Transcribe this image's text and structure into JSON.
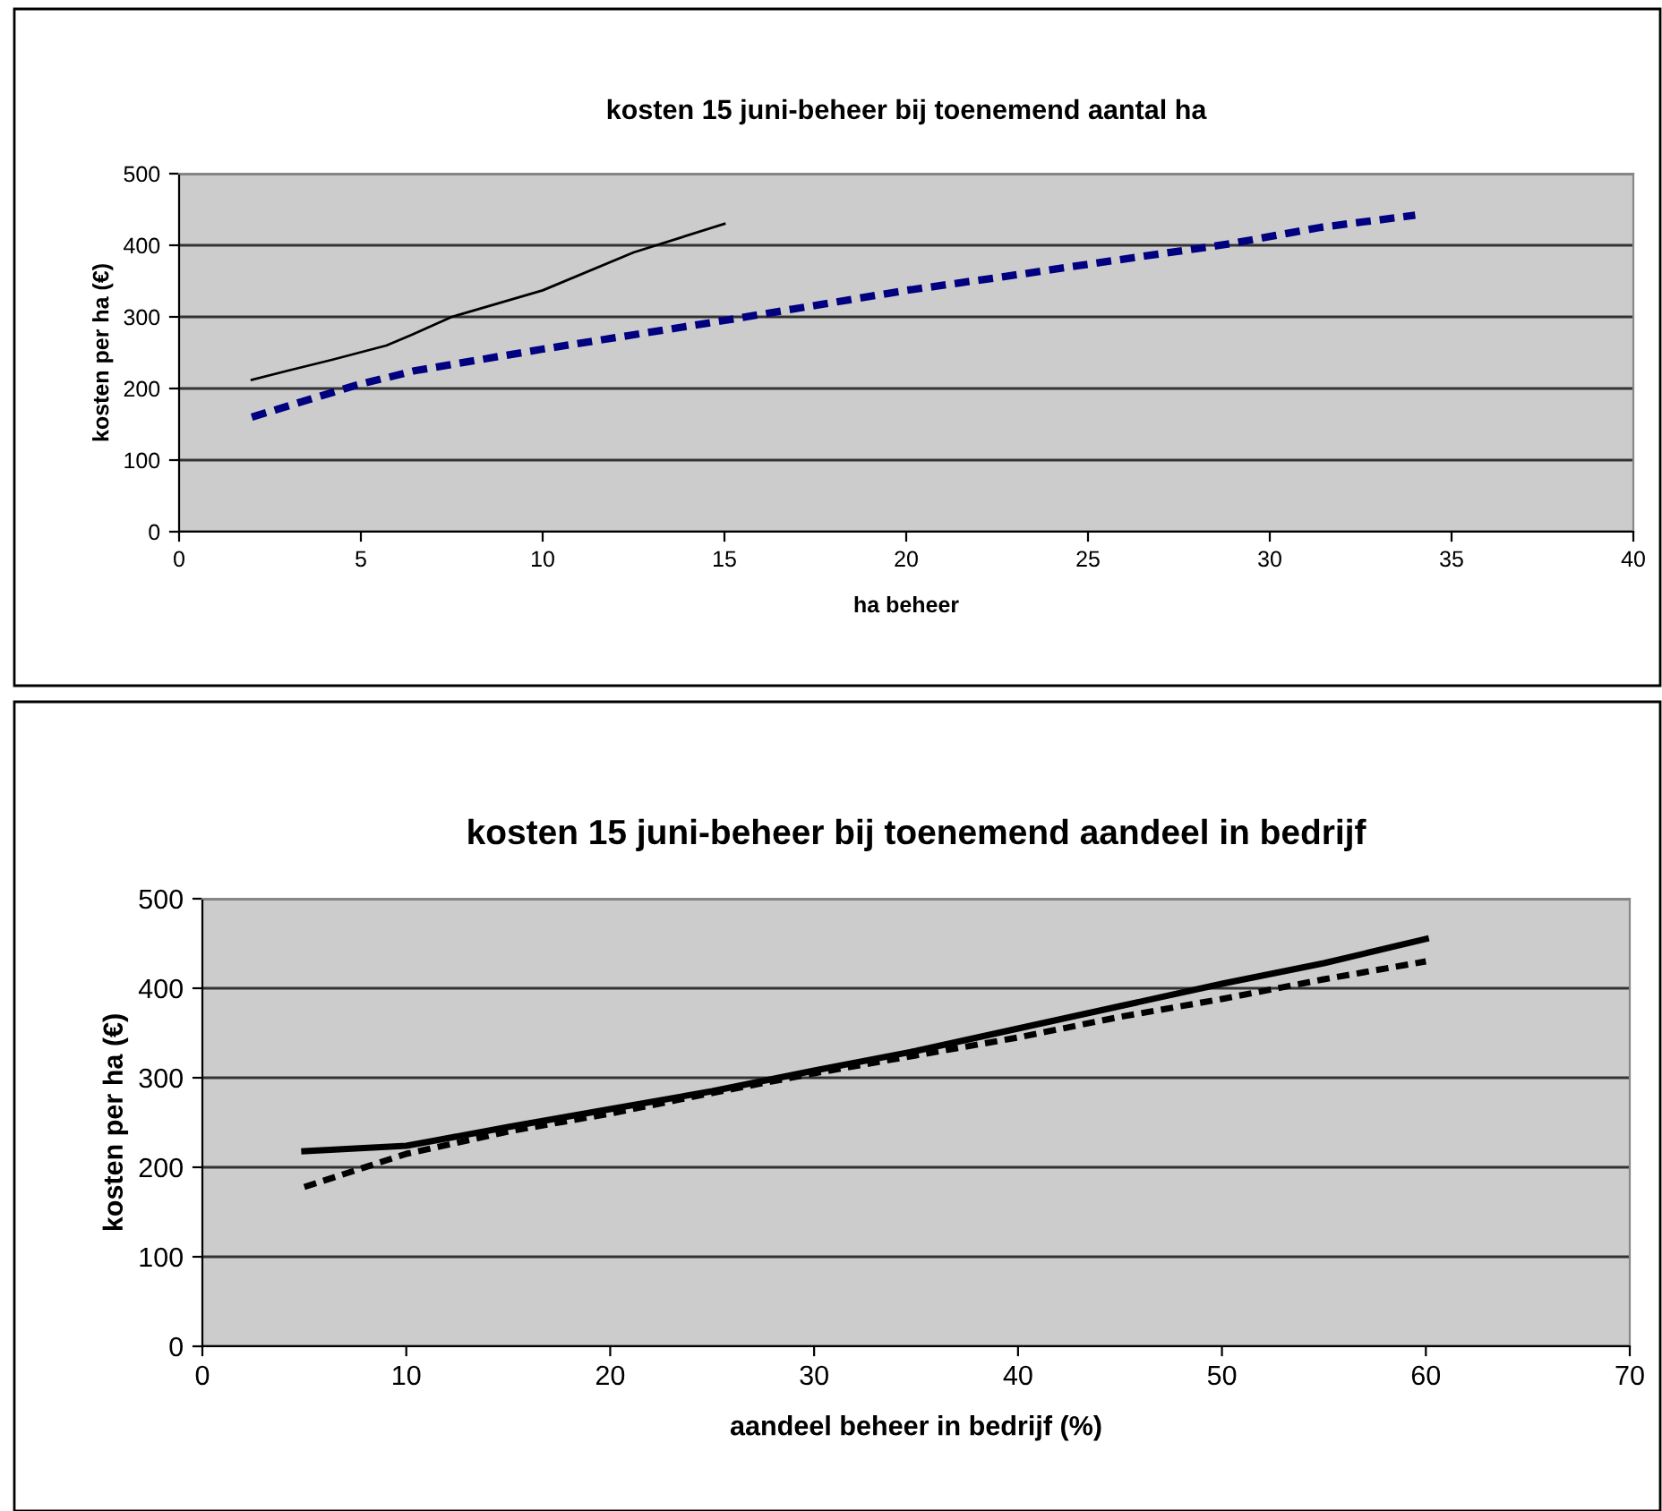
{
  "chart_data": [
    {
      "type": "line",
      "title": "kosten 15 juni-beheer bij toenemend aantal ha",
      "xlabel": "ha beheer",
      "ylabel": "kosten per ha (€)",
      "xlim": [
        0,
        40
      ],
      "xticks": [
        0,
        5,
        10,
        15,
        20,
        25,
        30,
        35,
        40
      ],
      "ylim": [
        0,
        500
      ],
      "yticks": [
        0,
        100,
        200,
        300,
        400,
        500
      ],
      "grid": "y",
      "series": [
        {
          "color": "#000000",
          "line_style": "solid",
          "x": [
            2,
            3,
            4.2,
            5.7,
            6.4,
            7.5,
            10,
            12.5,
            15
          ],
          "values": [
            212,
            225,
            240,
            260,
            275,
            300,
            337,
            390,
            430
          ]
        },
        {
          "color": "#000080",
          "line_style": "dashed",
          "x": [
            2,
            3.6,
            4.9,
            6.5,
            10,
            15,
            20,
            22.8,
            25.2,
            28.9,
            31.4,
            34
          ],
          "values": [
            160,
            185,
            205,
            225,
            255,
            295,
            337,
            357,
            375,
            402,
            425,
            442
          ]
        }
      ]
    },
    {
      "type": "line",
      "title": "kosten 15 juni-beheer bij toenemend aandeel in bedrijf",
      "xlabel": "aandeel beheer in bedrijf (%)",
      "ylabel": "kosten per ha (€)",
      "xlim": [
        0,
        70
      ],
      "xticks": [
        0,
        10,
        20,
        30,
        40,
        50,
        60,
        70
      ],
      "ylim": [
        0,
        500
      ],
      "yticks": [
        0,
        100,
        200,
        300,
        400,
        500
      ],
      "grid": "y",
      "series": [
        {
          "color": "#000000",
          "line_style": "solid",
          "x": [
            5,
            10,
            15,
            20,
            25,
            30,
            35,
            40,
            45,
            50,
            55,
            60
          ],
          "values": [
            218,
            224,
            245,
            265,
            285,
            308,
            330,
            355,
            380,
            405,
            428,
            455
          ]
        },
        {
          "color": "#000000",
          "line_style": "dashed",
          "x": [
            5,
            10,
            15,
            20,
            25,
            30,
            35,
            40,
            45,
            50,
            55,
            60
          ],
          "values": [
            178,
            215,
            240,
            260,
            283,
            305,
            325,
            345,
            368,
            388,
            410,
            430
          ]
        }
      ]
    }
  ]
}
